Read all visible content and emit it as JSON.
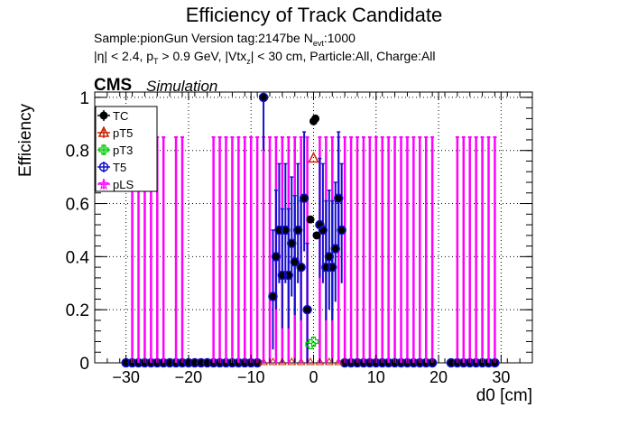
{
  "header": {
    "title": "Efficiency of Track Candidate",
    "meta_line1": "Sample:pionGun   Version tag:2147be  N_evt:1000",
    "meta_line2": "|η| < 2.4, p_T > 0.9 GeV, |Vtx_z| < 30 cm, Particle:All, Charge:All",
    "cms_label": "CMS",
    "sim_label": "Simulation"
  },
  "chart_data": {
    "type": "scatter",
    "title": "Efficiency of Track Candidate",
    "xlabel": "d0 [cm]",
    "ylabel": "Efficiency",
    "xlim": [
      -35,
      35
    ],
    "ylim": [
      0,
      1.02
    ],
    "x_ticks": [
      -30,
      -20,
      -10,
      0,
      10,
      20,
      30
    ],
    "x_tick_labels": [
      "−30",
      "−20",
      "−10",
      "0",
      "10",
      "20",
      "30"
    ],
    "y_ticks": [
      0,
      0.2,
      0.4,
      0.6,
      0.8,
      1
    ],
    "y_tick_labels": [
      "0",
      "0.2",
      "0.4",
      "0.6",
      "0.8",
      "1"
    ],
    "grid": true,
    "legend_position": "top-left",
    "series": [
      {
        "name": "TC",
        "color": "#000000",
        "marker": "filled-circle",
        "points": [
          [
            -8,
            1.0
          ],
          [
            -6.5,
            0.25
          ],
          [
            -6,
            0.4
          ],
          [
            -5.5,
            0.5
          ],
          [
            -5,
            0.33
          ],
          [
            -4.5,
            0.5
          ],
          [
            -4,
            0.33
          ],
          [
            -3.5,
            0.45
          ],
          [
            -3,
            0.38
          ],
          [
            -2.5,
            0.5
          ],
          [
            -2,
            0.36
          ],
          [
            -1.5,
            0.62
          ],
          [
            -1,
            0.2
          ],
          [
            -0.5,
            0.54
          ],
          [
            0,
            0.91
          ],
          [
            0.3,
            0.92
          ],
          [
            0.5,
            0.48
          ],
          [
            1,
            0.52
          ],
          [
            1.5,
            0.5
          ],
          [
            2,
            0.36
          ],
          [
            2.5,
            0.4
          ],
          [
            3,
            0.36
          ],
          [
            3.5,
            0.43
          ],
          [
            4,
            0.62
          ],
          [
            4.5,
            0.5
          ]
        ],
        "zero_points": [
          -30,
          -29,
          -28,
          -27,
          -26,
          -25,
          -24,
          -23,
          -22,
          -21,
          -20,
          -19,
          -18,
          -17,
          -16,
          -15,
          -14,
          -13,
          -12,
          -11,
          -10,
          -9,
          5,
          6,
          7,
          8,
          9,
          10,
          11,
          12,
          13,
          14,
          15,
          16,
          17,
          18,
          19,
          22,
          23,
          24,
          25,
          26,
          27,
          28,
          29
        ]
      },
      {
        "name": "pT5",
        "color": "#cc2200",
        "marker": "open-triangle",
        "points": [
          [
            0,
            0.77
          ]
        ]
      },
      {
        "name": "pT3",
        "color": "#00cc00",
        "marker": "open-cross",
        "points": [
          [
            0,
            0.08
          ],
          [
            -0.5,
            0.07
          ]
        ]
      },
      {
        "name": "T5",
        "color": "#1010cc",
        "marker": "open-circle",
        "points": [
          [
            -8,
            1.0
          ],
          [
            -6.5,
            0.25
          ],
          [
            -6,
            0.4
          ],
          [
            -5.5,
            0.5
          ],
          [
            -5,
            0.33
          ],
          [
            -4.5,
            0.5
          ],
          [
            -4,
            0.33
          ],
          [
            -3.5,
            0.45
          ],
          [
            -3,
            0.38
          ],
          [
            -2.5,
            0.5
          ],
          [
            -2,
            0.36
          ],
          [
            -1.5,
            0.62
          ],
          [
            -1,
            0.2
          ],
          [
            1,
            0.52
          ],
          [
            1.5,
            0.5
          ],
          [
            2,
            0.36
          ],
          [
            2.5,
            0.4
          ],
          [
            3,
            0.36
          ],
          [
            3.5,
            0.43
          ],
          [
            4,
            0.62
          ],
          [
            4.5,
            0.5
          ]
        ]
      },
      {
        "name": "pLS",
        "color": "#ff00ff",
        "marker": "open-star",
        "error_bar_x": [
          -29,
          -28,
          -27,
          -26,
          -25,
          -24,
          -22,
          -21,
          -16,
          -15,
          -14,
          -13,
          -12,
          -11,
          -10,
          -9,
          -8,
          -7,
          -6,
          -5,
          -4,
          -3,
          -2,
          -1,
          1,
          2,
          3,
          4,
          5,
          6,
          7,
          8,
          9,
          10,
          11,
          12,
          13,
          14,
          15,
          16,
          17,
          18,
          19,
          23,
          24,
          25,
          26,
          27,
          28,
          29
        ]
      }
    ]
  }
}
